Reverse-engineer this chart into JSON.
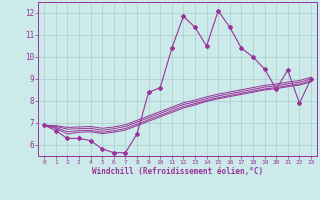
{
  "xlabel": "Windchill (Refroidissement éolien,°C)",
  "background_color": "#cceaea",
  "line_color": "#993399",
  "grid_color": "#aacccc",
  "xlim": [
    -0.5,
    23.5
  ],
  "ylim": [
    5.5,
    12.5
  ],
  "yticks": [
    6,
    7,
    8,
    9,
    10,
    11,
    12
  ],
  "xticks": [
    0,
    1,
    2,
    3,
    4,
    5,
    6,
    7,
    8,
    9,
    10,
    11,
    12,
    13,
    14,
    15,
    16,
    17,
    18,
    19,
    20,
    21,
    22,
    23
  ],
  "series": [
    [
      6.9,
      6.65,
      6.3,
      6.3,
      6.2,
      5.82,
      5.65,
      5.65,
      6.5,
      8.4,
      8.6,
      10.4,
      11.85,
      11.35,
      10.5,
      12.1,
      11.35,
      10.4,
      10.0,
      9.45,
      8.55,
      9.4,
      7.9,
      9.0
    ],
    [
      6.9,
      6.75,
      6.5,
      6.58,
      6.6,
      6.52,
      6.58,
      6.68,
      6.88,
      7.08,
      7.28,
      7.48,
      7.68,
      7.82,
      7.98,
      8.1,
      8.2,
      8.3,
      8.4,
      8.5,
      8.56,
      8.65,
      8.72,
      8.87
    ],
    [
      6.9,
      6.8,
      6.6,
      6.65,
      6.67,
      6.58,
      6.65,
      6.75,
      6.95,
      7.15,
      7.35,
      7.55,
      7.75,
      7.88,
      8.03,
      8.15,
      8.25,
      8.35,
      8.45,
      8.55,
      8.61,
      8.7,
      8.77,
      8.92
    ],
    [
      6.9,
      6.85,
      6.72,
      6.74,
      6.76,
      6.67,
      6.74,
      6.84,
      7.04,
      7.24,
      7.44,
      7.64,
      7.84,
      7.96,
      8.11,
      8.23,
      8.33,
      8.43,
      8.53,
      8.63,
      8.69,
      8.78,
      8.85,
      9.0
    ],
    [
      6.9,
      6.88,
      6.8,
      6.82,
      6.84,
      6.76,
      6.82,
      6.92,
      7.12,
      7.32,
      7.52,
      7.72,
      7.92,
      8.04,
      8.19,
      8.31,
      8.41,
      8.51,
      8.61,
      8.71,
      8.77,
      8.86,
      8.93,
      9.08
    ]
  ]
}
